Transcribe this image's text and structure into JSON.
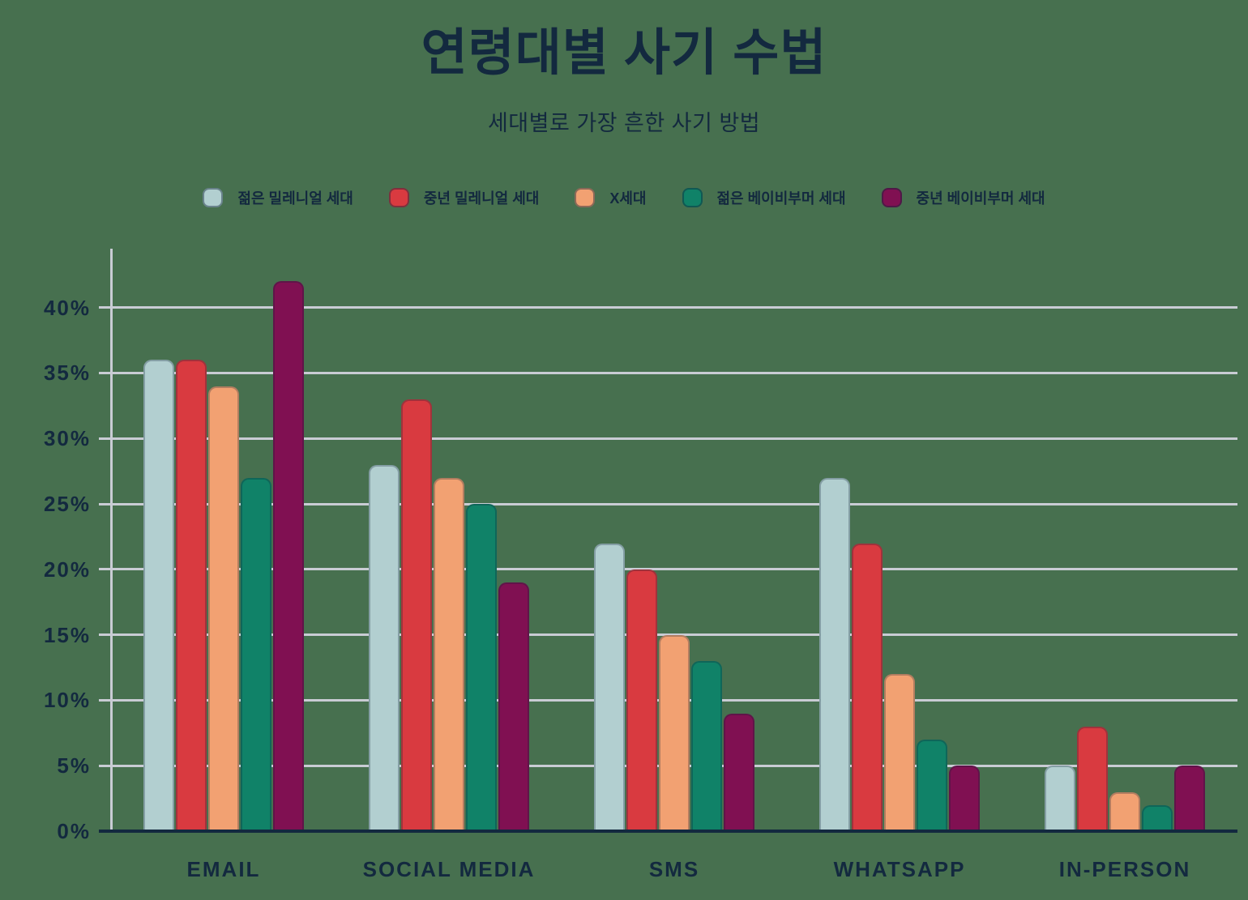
{
  "header": {
    "title": "연령대별 사기 수법",
    "subtitle": "세대별로 가장 흔한 사기 방법"
  },
  "colors": {
    "background": "#47704F",
    "text": "#13293F",
    "gridline": "#C9CCD4",
    "axis_line": "#13293F"
  },
  "chart_data": {
    "type": "bar",
    "title": "연령대별 사기 수법",
    "subtitle": "세대별로 가장 흔한 사기 방법",
    "categories": [
      "EMAIL",
      "SOCIAL MEDIA",
      "SMS",
      "WHATSAPP",
      "IN-PERSON"
    ],
    "series": [
      {
        "name": "젊은 밀레니얼 세대",
        "color": "#B2CFD0",
        "values": [
          36,
          28,
          22,
          27,
          5
        ]
      },
      {
        "name": "중년 밀레니얼 세대",
        "color": "#D93A40",
        "values": [
          36,
          33,
          20,
          22,
          8
        ]
      },
      {
        "name": "X세대",
        "color": "#F2A172",
        "values": [
          34,
          27,
          15,
          12,
          3
        ]
      },
      {
        "name": "젊은 베이비부머 세대",
        "color": "#108268",
        "values": [
          27,
          25,
          13,
          7,
          2
        ]
      },
      {
        "name": "중년 베이비부머 세대",
        "color": "#801052",
        "values": [
          42,
          19,
          9,
          5,
          5
        ]
      }
    ],
    "xlabel": "",
    "ylabel": "",
    "yticks": [
      0,
      5,
      10,
      15,
      20,
      25,
      30,
      35,
      40
    ],
    "ytick_suffix": "%",
    "ylim": [
      0,
      44.5
    ],
    "grid": true,
    "legend_position": "top"
  }
}
